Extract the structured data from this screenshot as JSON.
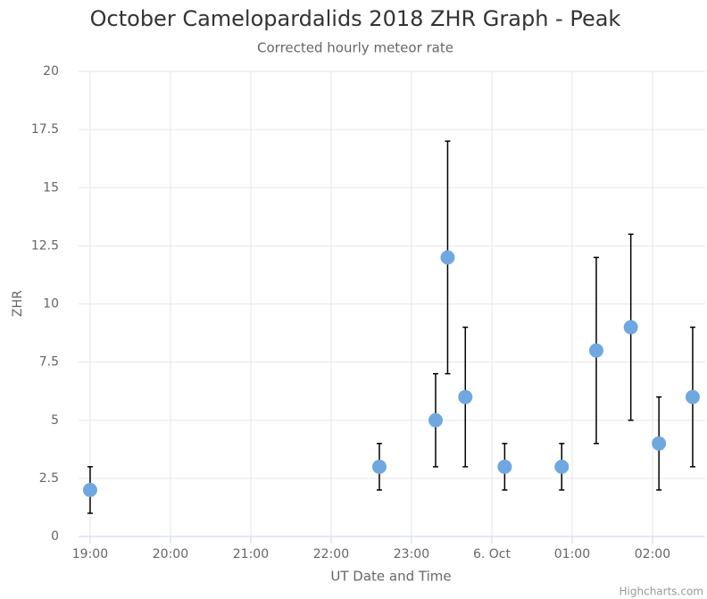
{
  "chart_data": {
    "type": "scatter",
    "title": "October Camelopardalids 2018 ZHR Graph - Peak",
    "subtitle": "Corrected hourly meteor rate",
    "x_label": "UT Date and Time",
    "y_label": "ZHR",
    "credits": "Highcharts.com",
    "series": [
      {
        "name": "ZHR",
        "color": "#6fa8e0",
        "x": [
          19.0,
          22.6,
          23.3,
          23.45,
          23.67,
          24.16,
          24.87,
          25.3,
          25.73,
          26.08,
          26.5
        ],
        "values": [
          2,
          3,
          5,
          12,
          6,
          3,
          3,
          8,
          9,
          4,
          6
        ],
        "errors": [
          1,
          1,
          2,
          5,
          3,
          1,
          1,
          4,
          4,
          2,
          3
        ]
      }
    ],
    "xlim": [
      18.856,
      26.656
    ],
    "xticks": [
      {
        "value": 19,
        "label": "19:00"
      },
      {
        "value": 20,
        "label": "20:00"
      },
      {
        "value": 21,
        "label": "21:00"
      },
      {
        "value": 22,
        "label": "22:00"
      },
      {
        "value": 23,
        "label": "23:00"
      },
      {
        "value": 24,
        "label": "6. Oct"
      },
      {
        "value": 25,
        "label": "01:00"
      },
      {
        "value": 26,
        "label": "02:00"
      }
    ],
    "ylim": [
      0,
      20
    ],
    "yticks": [
      0,
      2.5,
      5,
      7.5,
      10,
      12.5,
      15,
      17.5,
      20
    ],
    "grid": true
  }
}
